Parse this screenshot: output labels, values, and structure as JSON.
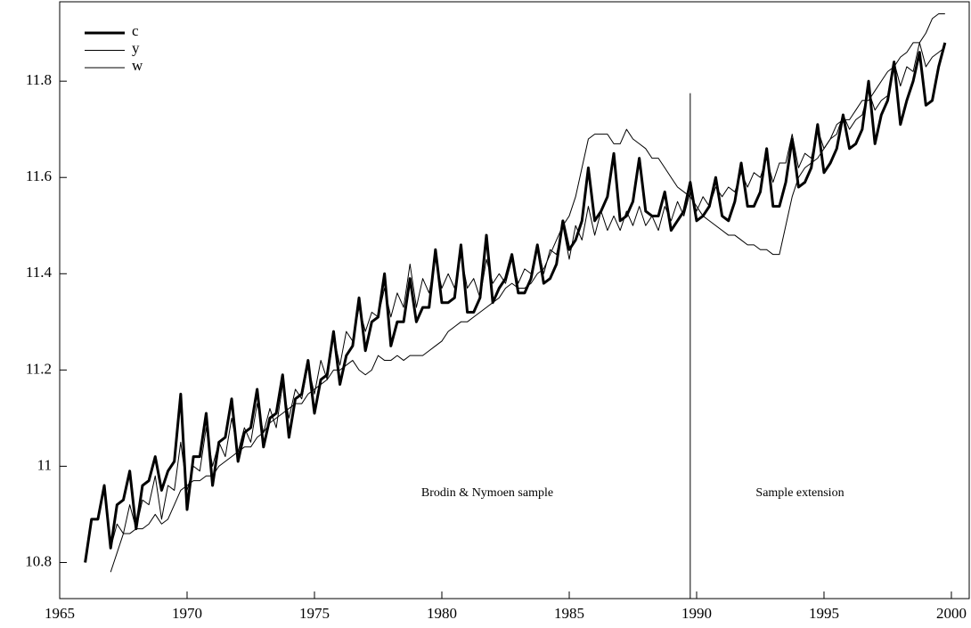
{
  "chart_data": {
    "type": "line",
    "x": [
      1966,
      1966.25,
      1966.5,
      1966.75,
      1967,
      1967.25,
      1967.5,
      1967.75,
      1968,
      1968.25,
      1968.5,
      1968.75,
      1969,
      1969.25,
      1969.5,
      1969.75,
      1970,
      1970.25,
      1970.5,
      1970.75,
      1971,
      1971.25,
      1971.5,
      1971.75,
      1972,
      1972.25,
      1972.5,
      1972.75,
      1973,
      1973.25,
      1973.5,
      1973.75,
      1974,
      1974.25,
      1974.5,
      1974.75,
      1975,
      1975.25,
      1975.5,
      1975.75,
      1976,
      1976.25,
      1976.5,
      1976.75,
      1977,
      1977.25,
      1977.5,
      1977.75,
      1978,
      1978.25,
      1978.5,
      1978.75,
      1979,
      1979.25,
      1979.5,
      1979.75,
      1980,
      1980.25,
      1980.5,
      1980.75,
      1981,
      1981.25,
      1981.5,
      1981.75,
      1982,
      1982.25,
      1982.5,
      1982.75,
      1983,
      1983.25,
      1983.5,
      1983.75,
      1984,
      1984.25,
      1984.5,
      1984.75,
      1985,
      1985.25,
      1985.5,
      1985.75,
      1986,
      1986.25,
      1986.5,
      1986.75,
      1987,
      1987.25,
      1987.5,
      1987.75,
      1988,
      1988.25,
      1988.5,
      1988.75,
      1989,
      1989.25,
      1989.5,
      1989.75,
      1990,
      1990.25,
      1990.5,
      1990.75,
      1991,
      1991.25,
      1991.5,
      1991.75,
      1992,
      1992.25,
      1992.5,
      1992.75,
      1993,
      1993.25,
      1993.5,
      1993.75,
      1994,
      1994.25,
      1994.5,
      1994.75,
      1995,
      1995.25,
      1995.5,
      1995.75,
      1996,
      1996.25,
      1996.5,
      1996.75,
      1997,
      1997.25,
      1997.5,
      1997.75,
      1998,
      1998.25,
      1998.5,
      1998.75,
      1999,
      1999.25,
      1999.5,
      1999.75
    ],
    "series": [
      {
        "name": "c",
        "color": "#000000",
        "width": 3,
        "values": [
          10.8,
          10.89,
          10.89,
          10.96,
          10.83,
          10.92,
          10.93,
          10.99,
          10.87,
          10.96,
          10.97,
          11.02,
          10.95,
          10.99,
          11.01,
          11.15,
          10.91,
          11.02,
          11.02,
          11.11,
          10.96,
          11.05,
          11.06,
          11.14,
          11.01,
          11.07,
          11.08,
          11.16,
          11.04,
          11.1,
          11.11,
          11.19,
          11.06,
          11.14,
          11.15,
          11.22,
          11.11,
          11.18,
          11.19,
          11.28,
          11.17,
          11.23,
          11.25,
          11.35,
          11.24,
          11.3,
          11.31,
          11.4,
          11.25,
          11.3,
          11.3,
          11.39,
          11.3,
          11.33,
          11.33,
          11.45,
          11.34,
          11.34,
          11.35,
          11.46,
          11.32,
          11.32,
          11.35,
          11.48,
          11.34,
          11.37,
          11.39,
          11.44,
          11.36,
          11.36,
          11.39,
          11.46,
          11.38,
          11.39,
          11.42,
          11.51,
          11.45,
          11.47,
          11.51,
          11.62,
          11.51,
          11.53,
          11.56,
          11.65,
          11.51,
          11.52,
          11.55,
          11.64,
          11.53,
          11.52,
          11.52,
          11.57,
          11.49,
          11.51,
          11.53,
          11.59,
          11.51,
          11.52,
          11.54,
          11.6,
          11.52,
          11.51,
          11.55,
          11.63,
          11.54,
          11.54,
          11.57,
          11.66,
          11.54,
          11.54,
          11.59,
          11.68,
          11.58,
          11.59,
          11.62,
          11.71,
          11.61,
          11.63,
          11.66,
          11.73,
          11.66,
          11.67,
          11.7,
          11.8,
          11.67,
          11.73,
          11.76,
          11.84,
          11.71,
          11.76,
          11.8,
          11.86,
          11.75,
          11.76,
          11.83,
          11.88
        ]
      },
      {
        "name": "y",
        "color": "#000000",
        "width": 1,
        "values": [
          null,
          null,
          null,
          null,
          10.83,
          10.88,
          10.86,
          10.92,
          10.87,
          10.93,
          10.92,
          10.98,
          10.89,
          10.96,
          10.95,
          11.05,
          10.95,
          11.0,
          10.99,
          11.08,
          11.0,
          11.05,
          11.02,
          11.1,
          11.03,
          11.08,
          11.05,
          11.13,
          11.07,
          11.12,
          11.08,
          11.17,
          11.1,
          11.16,
          11.14,
          11.21,
          11.15,
          11.22,
          11.18,
          11.27,
          11.21,
          11.28,
          11.26,
          11.33,
          11.28,
          11.32,
          11.31,
          11.37,
          11.31,
          11.36,
          11.33,
          11.42,
          11.33,
          11.39,
          11.36,
          11.43,
          11.37,
          11.4,
          11.37,
          11.44,
          11.37,
          11.39,
          11.35,
          11.43,
          11.38,
          11.4,
          11.38,
          11.43,
          11.38,
          11.41,
          11.4,
          11.46,
          11.4,
          11.45,
          11.44,
          11.5,
          11.43,
          11.5,
          11.47,
          11.54,
          11.48,
          11.53,
          11.49,
          11.52,
          11.49,
          11.53,
          11.5,
          11.54,
          11.5,
          11.52,
          11.49,
          11.54,
          11.51,
          11.55,
          11.52,
          11.57,
          11.53,
          11.56,
          11.54,
          11.58,
          11.56,
          11.58,
          11.57,
          11.61,
          11.58,
          11.61,
          11.6,
          11.64,
          11.59,
          11.63,
          11.63,
          11.69,
          11.62,
          11.65,
          11.64,
          11.7,
          11.66,
          11.68,
          11.69,
          11.73,
          11.7,
          11.72,
          11.73,
          11.78,
          11.74,
          11.76,
          11.77,
          11.84,
          11.79,
          11.83,
          11.82,
          11.88,
          11.83,
          11.85,
          11.86,
          11.87
        ]
      },
      {
        "name": "w",
        "color": "#000000",
        "width": 1,
        "values": [
          null,
          null,
          null,
          null,
          10.78,
          10.82,
          10.86,
          10.86,
          10.87,
          10.87,
          10.88,
          10.9,
          10.88,
          10.89,
          10.92,
          10.95,
          10.96,
          10.97,
          10.97,
          10.98,
          10.98,
          11.0,
          11.01,
          11.02,
          11.03,
          11.04,
          11.04,
          11.06,
          11.07,
          11.09,
          11.1,
          11.11,
          11.12,
          11.13,
          11.13,
          11.15,
          11.16,
          11.17,
          11.18,
          11.2,
          11.2,
          11.21,
          11.22,
          11.2,
          11.19,
          11.2,
          11.23,
          11.22,
          11.22,
          11.23,
          11.22,
          11.23,
          11.23,
          11.23,
          11.24,
          11.25,
          11.26,
          11.28,
          11.29,
          11.3,
          11.3,
          11.31,
          11.32,
          11.33,
          11.34,
          11.35,
          11.37,
          11.38,
          11.37,
          11.37,
          11.38,
          11.4,
          11.41,
          11.44,
          11.47,
          11.5,
          11.52,
          11.56,
          11.62,
          11.68,
          11.69,
          11.69,
          11.69,
          11.67,
          11.67,
          11.7,
          11.68,
          11.67,
          11.66,
          11.64,
          11.64,
          11.62,
          11.6,
          11.58,
          11.57,
          11.56,
          11.54,
          11.52,
          11.51,
          11.5,
          11.49,
          11.48,
          11.48,
          11.47,
          11.46,
          11.46,
          11.45,
          11.45,
          11.44,
          11.44,
          11.5,
          11.56,
          11.6,
          11.62,
          11.63,
          11.64,
          11.66,
          11.68,
          11.71,
          11.72,
          11.72,
          11.74,
          11.76,
          11.76,
          11.78,
          11.8,
          11.82,
          11.83,
          11.85,
          11.86,
          11.88,
          11.88,
          11.9,
          11.93,
          11.94,
          11.94
        ]
      }
    ],
    "xlim": [
      1965,
      2000.7
    ],
    "xticks": [
      1965,
      1970,
      1975,
      1980,
      1985,
      1990,
      1995,
      2000
    ],
    "ylim": [
      10.725,
      11.965
    ],
    "yticks": [
      10.8,
      11,
      11.2,
      11.4,
      11.6,
      11.8
    ],
    "reference_line": {
      "x": 1989.75,
      "ylim": [
        10.725,
        11.775
      ]
    },
    "annotations": [
      "Brodin & Nymoen sample",
      "Sample extension"
    ],
    "legend": "upper-left"
  }
}
